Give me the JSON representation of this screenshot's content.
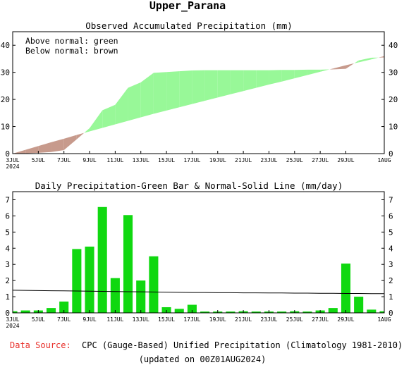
{
  "page_title": "Upper_Parana",
  "footer": {
    "source_label": "Data Source:",
    "source_text": "CPC (Gauge-Based) Unified Precipitation (Climatology 1981-2010)",
    "updated_text": "(updated on 00Z01AUG2024)",
    "source_label_color": "#e8302a"
  },
  "chart_data": [
    {
      "type": "area",
      "title": "Observed Accumulated Precipitation (mm)",
      "legend": [
        "Above normal: green",
        "Below normal: brown"
      ],
      "legend_placement": "top-left",
      "colors": {
        "above": "#98f898",
        "below": "#c79a8c"
      },
      "x_tick_labels": [
        "3JUL",
        "5JUL",
        "7JUL",
        "9JUL",
        "11JUL",
        "13JUL",
        "15JUL",
        "17JUL",
        "19JUL",
        "21JUL",
        "23JUL",
        "25JUL",
        "27JUL",
        "29JUL",
        "1AUG"
      ],
      "x_tick_days": [
        3,
        5,
        7,
        9,
        11,
        13,
        15,
        17,
        19,
        21,
        23,
        25,
        27,
        29,
        32
      ],
      "x_start_label_year": "2024",
      "ylim": [
        0,
        45
      ],
      "y_ticks": [
        0,
        10,
        20,
        30,
        40
      ],
      "x": [
        3,
        4,
        5,
        6,
        7,
        8,
        9,
        10,
        11,
        12,
        13,
        14,
        15,
        16,
        17,
        18,
        19,
        20,
        21,
        22,
        23,
        24,
        25,
        26,
        27,
        28,
        29,
        30,
        31,
        32
      ],
      "series": [
        {
          "name": "Observed",
          "values": [
            0,
            0.1,
            0.3,
            0.6,
            1.3,
            5.3,
            9.4,
            16.0,
            18.0,
            24.3,
            26.3,
            29.8,
            30.1,
            30.4,
            30.7,
            30.8,
            30.8,
            30.8,
            30.8,
            30.8,
            30.8,
            30.9,
            30.9,
            31.0,
            31.0,
            31.1,
            31.3,
            34.4,
            35.4,
            35.5
          ]
        },
        {
          "name": "Normal",
          "values": [
            0,
            1.4,
            2.8,
            4.2,
            5.5,
            6.9,
            8.2,
            9.5,
            10.8,
            12.1,
            13.4,
            14.7,
            15.9,
            17.1,
            18.3,
            19.5,
            20.7,
            21.9,
            23.1,
            24.3,
            25.5,
            26.6,
            27.8,
            29.0,
            30.2,
            31.4,
            32.6,
            33.7,
            34.8,
            36.0
          ]
        }
      ]
    },
    {
      "type": "bar",
      "title": "Daily Precipitation-Green Bar & Normal-Solid Line (mm/day)",
      "colors": {
        "bar": "#10d810",
        "line": "#000000"
      },
      "x_tick_labels": [
        "3JUL",
        "5JUL",
        "7JUL",
        "9JUL",
        "11JUL",
        "13JUL",
        "15JUL",
        "17JUL",
        "19JUL",
        "21JUL",
        "23JUL",
        "25JUL",
        "27JUL",
        "29JUL",
        "1AUG"
      ],
      "x_tick_days": [
        3,
        5,
        7,
        9,
        11,
        13,
        15,
        17,
        19,
        21,
        23,
        25,
        27,
        29,
        32
      ],
      "x_start_label_year": "2024",
      "ylim": [
        0,
        7.5
      ],
      "y_ticks": [
        0,
        1,
        2,
        3,
        4,
        5,
        6,
        7
      ],
      "x": [
        3,
        4,
        5,
        6,
        7,
        8,
        9,
        10,
        11,
        12,
        13,
        14,
        15,
        16,
        17,
        18,
        19,
        20,
        21,
        22,
        23,
        24,
        25,
        26,
        27,
        28,
        29,
        30,
        31,
        32
      ],
      "values": [
        0.1,
        0.15,
        0.15,
        0.3,
        0.7,
        3.95,
        4.1,
        6.55,
        2.15,
        6.05,
        2.0,
        3.5,
        0.35,
        0.25,
        0.5,
        0.08,
        0.08,
        0.08,
        0.1,
        0.08,
        0.08,
        0.08,
        0.1,
        0.08,
        0.15,
        0.3,
        3.05,
        1.0,
        0.2,
        0.1
      ],
      "normal": [
        1.4,
        1.39,
        1.38,
        1.37,
        1.36,
        1.35,
        1.34,
        1.33,
        1.32,
        1.31,
        1.3,
        1.29,
        1.28,
        1.27,
        1.26,
        1.26,
        1.25,
        1.25,
        1.24,
        1.24,
        1.23,
        1.23,
        1.22,
        1.22,
        1.21,
        1.21,
        1.2,
        1.2,
        1.19,
        1.19
      ]
    }
  ]
}
